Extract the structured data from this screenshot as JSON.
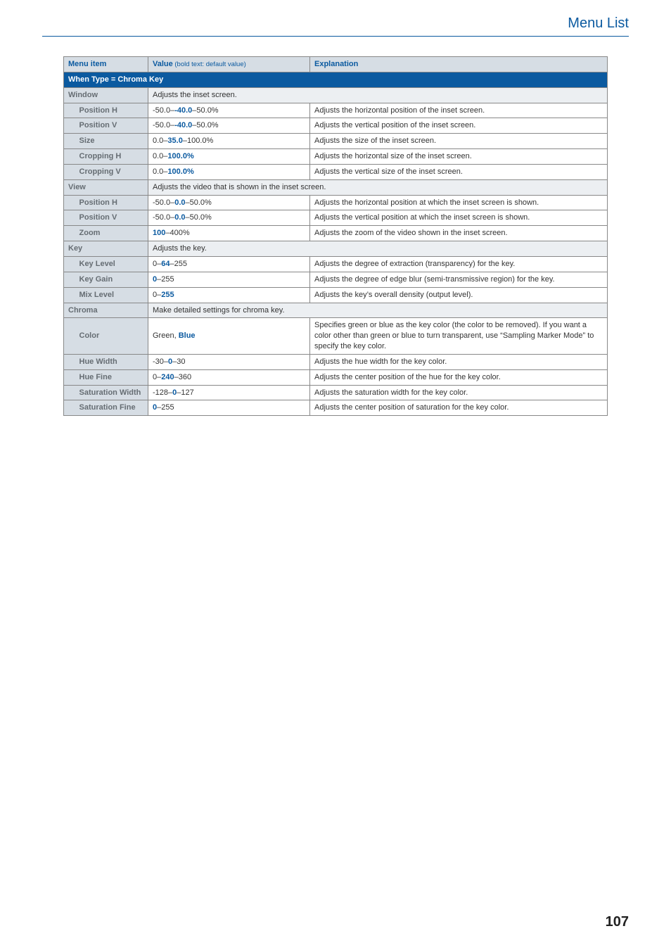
{
  "header_title": "Menu List",
  "page_number": "107",
  "columns": {
    "menu_item": "Menu item",
    "value": "Value",
    "value_sub": " (bold text: default value)",
    "explanation": "Explanation"
  },
  "section_title": "When Type = Chroma Key",
  "groups": [
    {
      "name": "Window",
      "desc": "Adjusts the inset screen.",
      "rows": [
        {
          "label": "Position H",
          "v_pre": "-50.0–",
          "v_def": "-40.0",
          "v_post": "–50.0%",
          "expl": "Adjusts the horizontal position of the inset screen."
        },
        {
          "label": "Position V",
          "v_pre": "-50.0–",
          "v_def": "-40.0",
          "v_post": "–50.0%",
          "expl": "Adjusts the vertical position of the inset screen."
        },
        {
          "label": "Size",
          "v_pre": "0.0–",
          "v_def": "35.0",
          "v_post": "–100.0%",
          "expl": "Adjusts the size of the inset screen."
        },
        {
          "label": "Cropping H",
          "v_pre": "0.0–",
          "v_def": "100.0%",
          "v_post": "",
          "expl": "Adjusts the horizontal size of the inset screen."
        },
        {
          "label": "Cropping V",
          "v_pre": "0.0–",
          "v_def": "100.0%",
          "v_post": "",
          "expl": "Adjusts the vertical size of the inset screen."
        }
      ]
    },
    {
      "name": "View",
      "desc": "Adjusts the video that is shown in the inset screen.",
      "rows": [
        {
          "label": "Position H",
          "v_pre": "-50.0–",
          "v_def": "0.0",
          "v_post": "–50.0%",
          "expl": "Adjusts the horizontal position at which the inset screen is shown."
        },
        {
          "label": "Position V",
          "v_pre": "-50.0–",
          "v_def": "0.0",
          "v_post": "–50.0%",
          "expl": "Adjusts the vertical position at which the inset screen is shown."
        },
        {
          "label": "Zoom",
          "v_pre": "",
          "v_def": "100",
          "v_post": "–400%",
          "expl": "Adjusts the zoom of the video shown in the inset screen."
        }
      ]
    },
    {
      "name": "Key",
      "desc": "Adjusts the key.",
      "rows": [
        {
          "label": "Key Level",
          "v_pre": "0–",
          "v_def": "64",
          "v_post": "–255",
          "expl": "Adjusts the degree of extraction (transparency) for the key."
        },
        {
          "label": "Key Gain",
          "v_pre": "",
          "v_def": "0",
          "v_post": "–255",
          "expl": "Adjusts the degree of edge blur (semi-transmissive region) for the key."
        },
        {
          "label": "Mix Level",
          "v_pre": "0–",
          "v_def": "255",
          "v_post": "",
          "expl": "Adjusts the key’s overall density (output level)."
        }
      ]
    },
    {
      "name": "Chroma",
      "desc": "Make detailed settings for chroma key.",
      "rows": [
        {
          "label": "Color",
          "v_pre": "Green, ",
          "v_def": "Blue",
          "v_post": "",
          "expl": "Specifies green or blue as the key color (the color to be removed). If you want a color other than green or blue to turn transparent, use “Sampling Marker Mode” to specify the key color."
        },
        {
          "label": "Hue Width",
          "v_pre": "-30–",
          "v_def": "0",
          "v_post": "–30",
          "expl": "Adjusts the hue width for the key color."
        },
        {
          "label": "Hue Fine",
          "v_pre": "0–",
          "v_def": "240",
          "v_post": "–360",
          "expl": "Adjusts the center position of the hue for the key color."
        },
        {
          "label": "Saturation Width",
          "v_pre": "-128–",
          "v_def": "0",
          "v_post": "–127",
          "expl": "Adjusts the saturation width for the key color."
        },
        {
          "label": "Saturation Fine",
          "v_pre": "",
          "v_def": "0",
          "v_post": "–255",
          "expl": "Adjusts the center position of saturation for the key color."
        }
      ]
    }
  ]
}
